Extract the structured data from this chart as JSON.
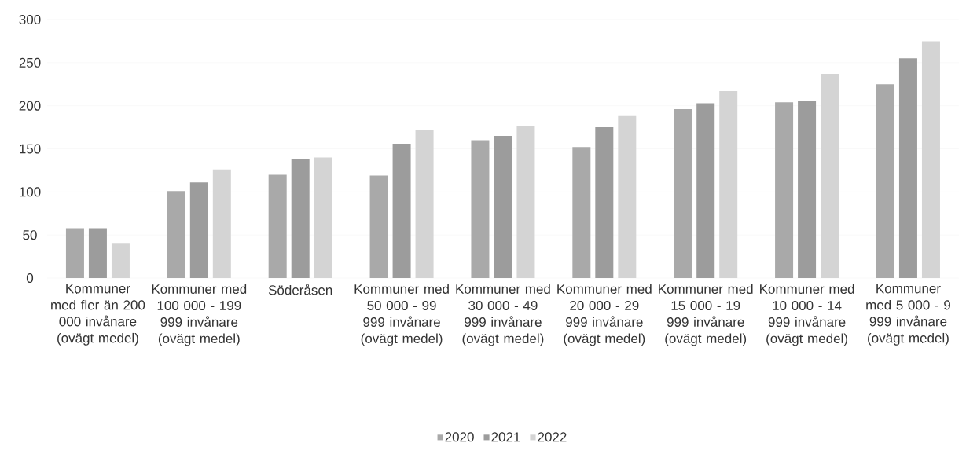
{
  "chart_data": {
    "type": "bar",
    "categories": [
      "Kommuner med fler än 200 000 invånare (ovägt medel)",
      "Kommuner med 100 000 - 199 999 invånare (ovägt medel)",
      "Söderåsen",
      "Kommuner med 50 000 - 99 999 invånare (ovägt medel)",
      "Kommuner med 30 000 - 49 999 invånare (ovägt medel)",
      "Kommuner med 20 000 - 29 999 invånare (ovägt medel)",
      "Kommuner med 15 000 - 19 999 invånare (ovägt medel)",
      "Kommuner med 10 000 - 14 999 invånare (ovägt medel)",
      "Kommuner med 5 000 - 9 999 invånare (ovägt medel)"
    ],
    "series": [
      {
        "name": "2020",
        "color": "#a9a9a9",
        "values": [
          58,
          101,
          120,
          119,
          160,
          152,
          196,
          204,
          225
        ]
      },
      {
        "name": "2021",
        "color": "#9c9c9c",
        "values": [
          58,
          111,
          138,
          156,
          165,
          175,
          203,
          206,
          255
        ]
      },
      {
        "name": "2022",
        "color": "#d4d4d4",
        "values": [
          40,
          126,
          140,
          172,
          176,
          188,
          217,
          237,
          275
        ]
      }
    ],
    "ylim": [
      0,
      300
    ],
    "yticks": [
      0,
      50,
      100,
      150,
      200,
      250,
      300
    ],
    "grid": "y",
    "legend": "bottom"
  }
}
